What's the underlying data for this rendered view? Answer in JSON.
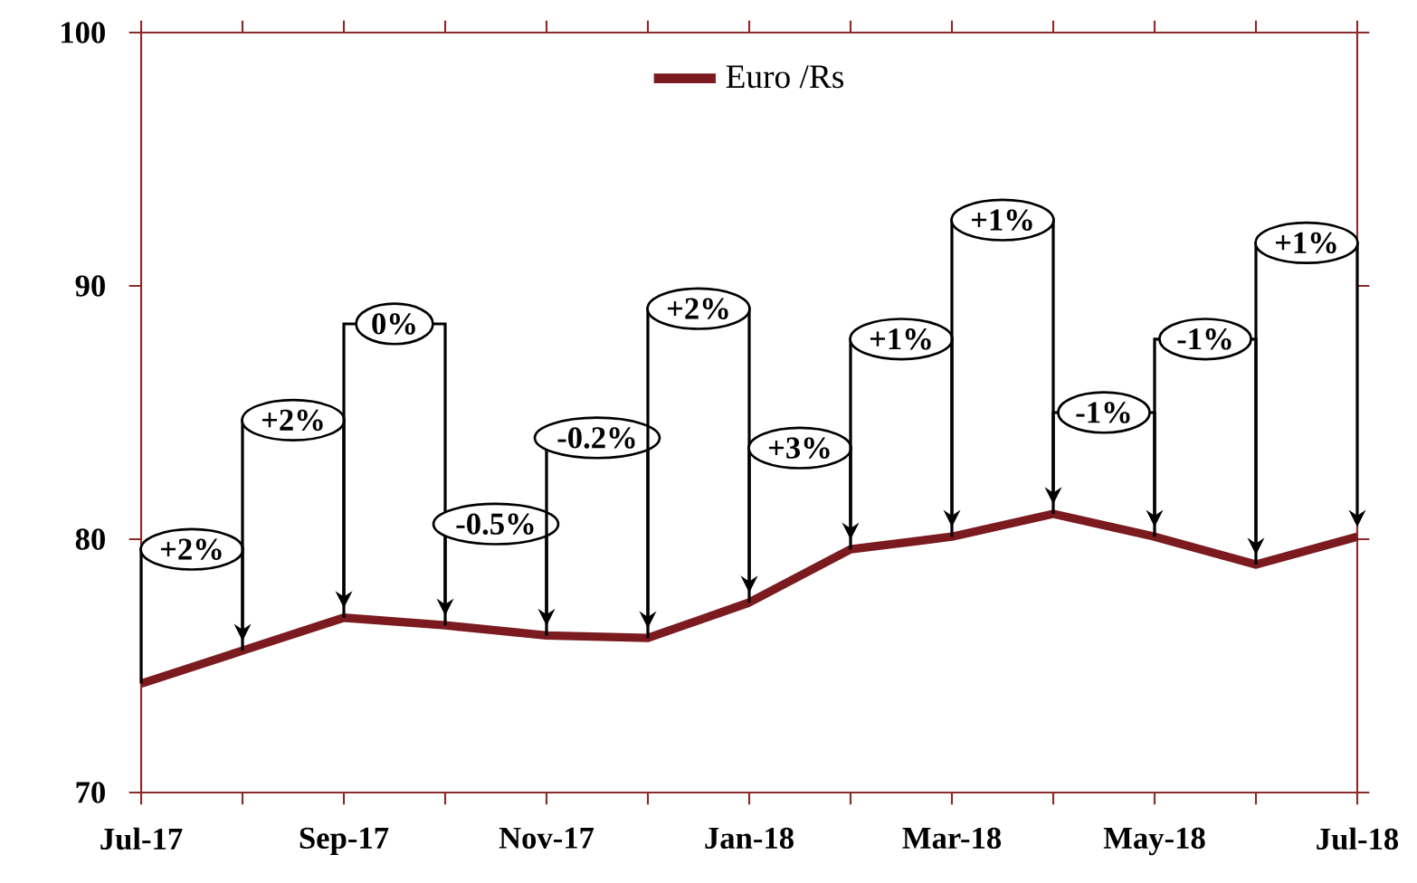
{
  "chart_data": {
    "type": "line",
    "categories": [
      "Jul-17",
      null,
      "Sep-17",
      null,
      "Nov-17",
      null,
      "Jan-18",
      null,
      "Mar-18",
      null,
      "May-18",
      null,
      "Jul-18"
    ],
    "series": [
      {
        "name": "Euro /Rs",
        "color": "#7b1a1f",
        "values": [
          74.3,
          75.6,
          76.9,
          76.6,
          76.2,
          76.1,
          77.5,
          79.6,
          80.1,
          81.0,
          80.1,
          79.0,
          80.1
        ]
      }
    ],
    "ylim": [
      70,
      100
    ],
    "yticks": [
      70,
      80,
      90,
      100
    ],
    "legend": "top",
    "grid": false,
    "marker": "none",
    "line_style": "solid",
    "annotations": [
      "+2%",
      "+2%",
      "0%",
      "-0.5%",
      "-0.2%",
      "+2%",
      "+3%",
      "+1%",
      "+1%",
      "-1%",
      "-1%",
      "+1%"
    ]
  }
}
